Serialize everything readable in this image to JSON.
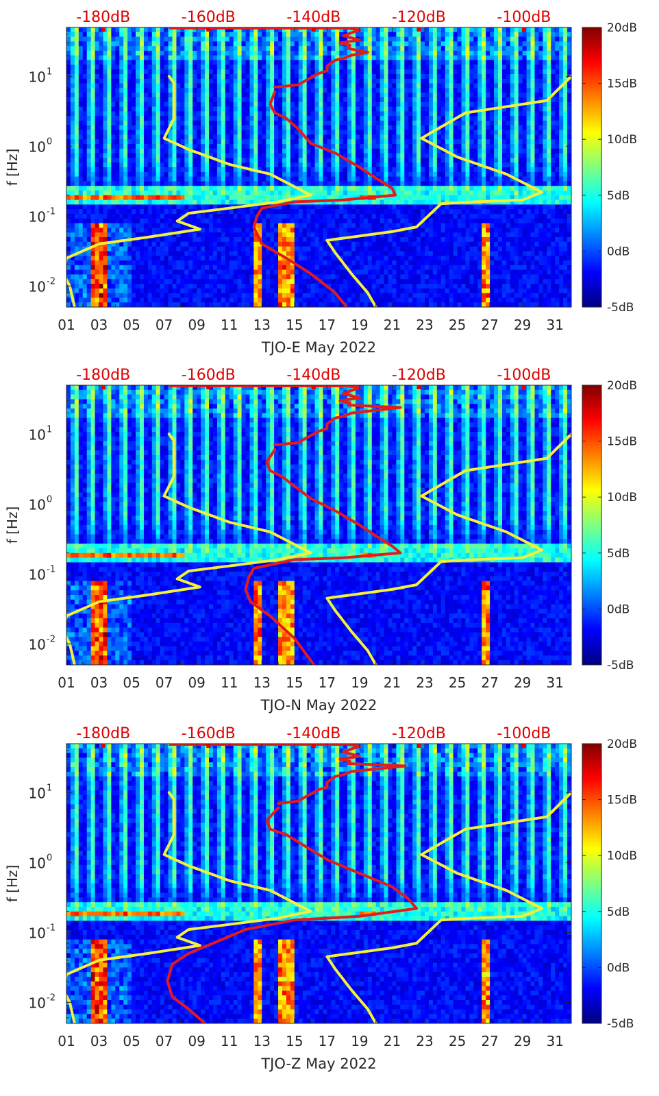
{
  "chart_data": [
    {
      "type": "heatmap",
      "title": "",
      "xlabel": "TJO-E May 2022",
      "ylabel": "f [Hz]",
      "x_ticks": [
        "01",
        "03",
        "05",
        "07",
        "09",
        "11",
        "13",
        "15",
        "17",
        "19",
        "21",
        "23",
        "25",
        "27",
        "29",
        "31"
      ],
      "xlim": [
        1,
        32
      ],
      "y_scale": "log",
      "ylim": [
        0.005,
        50
      ],
      "y_ticks": [
        {
          "label": "10",
          "exp": "-2"
        },
        {
          "label": "10",
          "exp": "-1"
        },
        {
          "label": "10",
          "exp": "0"
        },
        {
          "label": "10",
          "exp": "1"
        }
      ],
      "top_ticks": [
        "-180dB",
        "-160dB",
        "-140dB",
        "-120dB",
        "-100dB"
      ],
      "top_range_db": [
        -187,
        -91
      ],
      "colorbar": {
        "ticks": [
          "-5dB",
          "0dB",
          "5dB",
          "10dB",
          "15dB",
          "20dB"
        ],
        "range": [
          -5,
          20
        ]
      },
      "series": [
        {
          "color": "#f5f03a",
          "points": [
            [
              7.3,
              10
            ],
            [
              7.6,
              8
            ],
            [
              7.6,
              2.5
            ],
            [
              7.0,
              1.3
            ],
            [
              8.5,
              0.9
            ],
            [
              11,
              0.55
            ],
            [
              13.5,
              0.4
            ],
            [
              16,
              0.2
            ],
            [
              14,
              0.16
            ],
            [
              11,
              0.13
            ],
            [
              8.5,
              0.11
            ],
            [
              7.8,
              0.085
            ],
            [
              9.2,
              0.065
            ],
            [
              6,
              0.05
            ],
            [
              3,
              0.04
            ],
            [
              1,
              0.025
            ],
            [
              0.8,
              0.015
            ],
            [
              1.2,
              0.01
            ],
            [
              1.5,
              0.005
            ]
          ]
        },
        {
          "color": "#f5f03a",
          "points": [
            [
              32,
              10
            ],
            [
              30.5,
              4.5
            ],
            [
              25.5,
              3
            ],
            [
              22.8,
              1.3
            ],
            [
              25,
              0.7
            ],
            [
              28,
              0.4
            ],
            [
              30.2,
              0.22
            ],
            [
              29,
              0.17
            ],
            [
              26,
              0.16
            ],
            [
              24,
              0.15
            ],
            [
              22.5,
              0.07
            ],
            [
              21,
              0.06
            ],
            [
              17,
              0.045
            ],
            [
              17.5,
              0.03
            ],
            [
              18.5,
              0.015
            ],
            [
              19.5,
              0.008
            ],
            [
              20,
              0.005
            ]
          ]
        },
        {
          "color": "#e41a1c",
          "points": [
            [
              13.8,
              6
            ],
            [
              13.5,
              4
            ],
            [
              13.8,
              3
            ],
            [
              14.5,
              2.5
            ],
            [
              15.2,
              1.8
            ],
            [
              16,
              1.1
            ],
            [
              17.5,
              0.8
            ],
            [
              19,
              0.5
            ],
            [
              20,
              0.35
            ],
            [
              21,
              0.25
            ],
            [
              21.2,
              0.2
            ],
            [
              18,
              0.17
            ],
            [
              15,
              0.16
            ],
            [
              13,
              0.13
            ],
            [
              12.7,
              0.1
            ],
            [
              12.5,
              0.07
            ],
            [
              13,
              0.04
            ],
            [
              14.5,
              0.025
            ],
            [
              16,
              0.015
            ],
            [
              17.5,
              0.008
            ],
            [
              18.2,
              0.005
            ]
          ]
        },
        {
          "color": "#e41a1c",
          "points": [
            [
              13.8,
              7
            ],
            [
              15.2,
              7.5
            ],
            [
              15.8,
              9
            ],
            [
              16.5,
              11
            ],
            [
              17,
              12
            ],
            [
              17,
              14
            ],
            [
              17.5,
              17
            ],
            [
              18,
              18
            ],
            [
              18.5,
              20
            ],
            [
              19.5,
              22
            ],
            [
              18.3,
              25
            ],
            [
              18.4,
              28
            ],
            [
              17.8,
              30
            ],
            [
              19,
              33
            ],
            [
              18,
              38
            ],
            [
              18.5,
              42
            ],
            [
              19,
              46
            ],
            [
              18,
              50
            ]
          ]
        }
      ]
    },
    {
      "type": "heatmap",
      "title": "",
      "xlabel": "TJO-N May 2022",
      "ylabel": "f [Hz]",
      "x_ticks": [
        "01",
        "03",
        "05",
        "07",
        "09",
        "11",
        "13",
        "15",
        "17",
        "19",
        "21",
        "23",
        "25",
        "27",
        "29",
        "31"
      ],
      "xlim": [
        1,
        32
      ],
      "y_scale": "log",
      "ylim": [
        0.005,
        50
      ],
      "y_ticks": [
        {
          "label": "10",
          "exp": "-2"
        },
        {
          "label": "10",
          "exp": "-1"
        },
        {
          "label": "10",
          "exp": "0"
        },
        {
          "label": "10",
          "exp": "1"
        }
      ],
      "top_ticks": [
        "-180dB",
        "-160dB",
        "-140dB",
        "-120dB",
        "-100dB"
      ],
      "top_range_db": [
        -187,
        -91
      ],
      "colorbar": {
        "ticks": [
          "-5dB",
          "0dB",
          "5dB",
          "10dB",
          "15dB",
          "20dB"
        ],
        "range": [
          -5,
          20
        ]
      },
      "series": [
        {
          "color": "#f5f03a",
          "points": [
            [
              7.3,
              10
            ],
            [
              7.6,
              8
            ],
            [
              7.6,
              2.5
            ],
            [
              7.0,
              1.3
            ],
            [
              8.5,
              0.9
            ],
            [
              11,
              0.55
            ],
            [
              13.5,
              0.4
            ],
            [
              16,
              0.2
            ],
            [
              14,
              0.16
            ],
            [
              11,
              0.13
            ],
            [
              8.5,
              0.11
            ],
            [
              7.8,
              0.085
            ],
            [
              9.2,
              0.065
            ],
            [
              6,
              0.05
            ],
            [
              3,
              0.04
            ],
            [
              1,
              0.025
            ],
            [
              0.8,
              0.015
            ],
            [
              1.2,
              0.01
            ],
            [
              1.5,
              0.005
            ]
          ]
        },
        {
          "color": "#f5f03a",
          "points": [
            [
              32,
              10
            ],
            [
              30.5,
              4.5
            ],
            [
              25.5,
              3
            ],
            [
              22.8,
              1.3
            ],
            [
              25,
              0.7
            ],
            [
              28,
              0.4
            ],
            [
              30.2,
              0.22
            ],
            [
              29,
              0.17
            ],
            [
              26,
              0.16
            ],
            [
              24,
              0.15
            ],
            [
              22.5,
              0.07
            ],
            [
              21,
              0.06
            ],
            [
              17,
              0.045
            ],
            [
              17.5,
              0.03
            ],
            [
              18.5,
              0.015
            ],
            [
              19.5,
              0.008
            ],
            [
              20,
              0.005
            ]
          ]
        },
        {
          "color": "#e41a1c",
          "points": [
            [
              13.8,
              6
            ],
            [
              13.3,
              4
            ],
            [
              13.5,
              3
            ],
            [
              14.2,
              2.5
            ],
            [
              15,
              1.8
            ],
            [
              16,
              1.2
            ],
            [
              17.5,
              0.8
            ],
            [
              19,
              0.5
            ],
            [
              20,
              0.35
            ],
            [
              21,
              0.25
            ],
            [
              21.5,
              0.2
            ],
            [
              18,
              0.17
            ],
            [
              15,
              0.16
            ],
            [
              12.5,
              0.12
            ],
            [
              12.2,
              0.09
            ],
            [
              12.0,
              0.06
            ],
            [
              12.3,
              0.04
            ],
            [
              13.5,
              0.025
            ],
            [
              15,
              0.012
            ],
            [
              16.2,
              0.005
            ]
          ]
        },
        {
          "color": "#e41a1c",
          "points": [
            [
              13.8,
              7
            ],
            [
              15.2,
              7.5
            ],
            [
              15.8,
              9
            ],
            [
              16.5,
              11
            ],
            [
              17,
              12
            ],
            [
              17,
              14
            ],
            [
              17.5,
              17
            ],
            [
              18,
              18
            ],
            [
              18.5,
              20
            ],
            [
              21.5,
              24
            ],
            [
              18.3,
              26
            ],
            [
              18.4,
              28
            ],
            [
              17.8,
              30
            ],
            [
              19,
              33
            ],
            [
              18,
              38
            ],
            [
              18.5,
              42
            ],
            [
              19,
              46
            ],
            [
              18,
              50
            ]
          ]
        }
      ]
    },
    {
      "type": "heatmap",
      "title": "",
      "xlabel": "TJO-Z May 2022",
      "ylabel": "f [Hz]",
      "x_ticks": [
        "01",
        "03",
        "05",
        "07",
        "09",
        "11",
        "13",
        "15",
        "17",
        "19",
        "21",
        "23",
        "25",
        "27",
        "29",
        "31"
      ],
      "xlim": [
        1,
        32
      ],
      "y_scale": "log",
      "ylim": [
        0.005,
        50
      ],
      "y_ticks": [
        {
          "label": "10",
          "exp": "-2"
        },
        {
          "label": "10",
          "exp": "-1"
        },
        {
          "label": "10",
          "exp": "0"
        },
        {
          "label": "10",
          "exp": "1"
        }
      ],
      "top_ticks": [
        "-180dB",
        "-160dB",
        "-140dB",
        "-120dB",
        "-100dB"
      ],
      "top_range_db": [
        -187,
        -91
      ],
      "colorbar": {
        "ticks": [
          "-5dB",
          "0dB",
          "5dB",
          "10dB",
          "15dB",
          "20dB"
        ],
        "range": [
          -5,
          20
        ]
      },
      "series": [
        {
          "color": "#f5f03a",
          "points": [
            [
              7.3,
              10
            ],
            [
              7.6,
              8
            ],
            [
              7.6,
              2.5
            ],
            [
              7.0,
              1.3
            ],
            [
              8.5,
              0.9
            ],
            [
              11,
              0.55
            ],
            [
              13.5,
              0.4
            ],
            [
              16,
              0.2
            ],
            [
              14,
              0.16
            ],
            [
              11,
              0.13
            ],
            [
              8.5,
              0.11
            ],
            [
              7.8,
              0.085
            ],
            [
              9.2,
              0.065
            ],
            [
              6,
              0.05
            ],
            [
              3,
              0.04
            ],
            [
              1,
              0.025
            ],
            [
              0.8,
              0.015
            ],
            [
              1.2,
              0.01
            ],
            [
              1.5,
              0.005
            ]
          ]
        },
        {
          "color": "#f5f03a",
          "points": [
            [
              32,
              10
            ],
            [
              30.5,
              4.5
            ],
            [
              25.5,
              3
            ],
            [
              22.8,
              1.3
            ],
            [
              25,
              0.7
            ],
            [
              28,
              0.4
            ],
            [
              30.2,
              0.22
            ],
            [
              29,
              0.17
            ],
            [
              26,
              0.16
            ],
            [
              24,
              0.15
            ],
            [
              22.5,
              0.07
            ],
            [
              21,
              0.06
            ],
            [
              17,
              0.045
            ],
            [
              17.5,
              0.03
            ],
            [
              18.5,
              0.015
            ],
            [
              19.5,
              0.008
            ],
            [
              20,
              0.005
            ]
          ]
        },
        {
          "color": "#e41a1c",
          "points": [
            [
              14,
              6
            ],
            [
              13.3,
              4
            ],
            [
              13.5,
              3
            ],
            [
              14.5,
              2.5
            ],
            [
              15.5,
              1.8
            ],
            [
              17,
              1.1
            ],
            [
              19,
              0.7
            ],
            [
              21,
              0.45
            ],
            [
              22,
              0.3
            ],
            [
              22.5,
              0.22
            ],
            [
              19,
              0.17
            ],
            [
              15,
              0.15
            ],
            [
              12,
              0.11
            ],
            [
              10,
              0.07
            ],
            [
              8.5,
              0.05
            ],
            [
              7.5,
              0.035
            ],
            [
              7.2,
              0.02
            ],
            [
              7.5,
              0.012
            ],
            [
              8.5,
              0.008
            ],
            [
              9.5,
              0.005
            ]
          ]
        },
        {
          "color": "#e41a1c",
          "points": [
            [
              14,
              7
            ],
            [
              15.2,
              7.5
            ],
            [
              15.8,
              9
            ],
            [
              16.5,
              11
            ],
            [
              17,
              12
            ],
            [
              17,
              14
            ],
            [
              17.5,
              17
            ],
            [
              18,
              18
            ],
            [
              18.5,
              20
            ],
            [
              21.8,
              24
            ],
            [
              18.3,
              26
            ],
            [
              18.4,
              28
            ],
            [
              17.8,
              30
            ],
            [
              19,
              33
            ],
            [
              18,
              38
            ],
            [
              18.5,
              42
            ],
            [
              19,
              46
            ],
            [
              18,
              50
            ]
          ]
        }
      ]
    }
  ]
}
